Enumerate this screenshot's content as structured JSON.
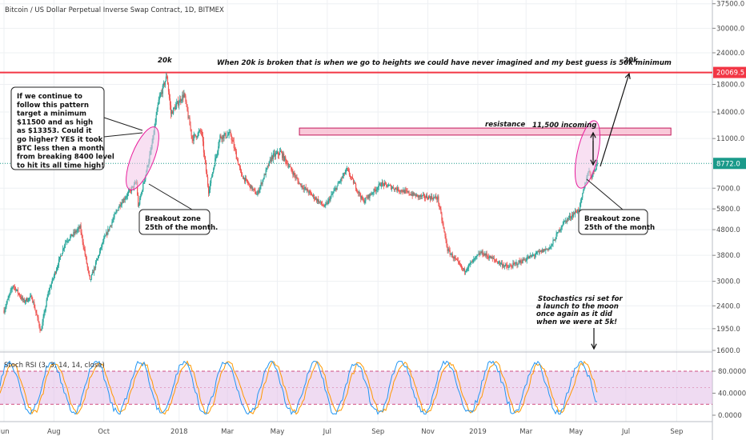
{
  "chart_data": {
    "type": "candlestick",
    "title": "Bitcoin / US Dollar Perpetual Inverse Swap Contract, 1D, BITMEX",
    "price_axis": {
      "scale": "log",
      "range": [
        1550,
        38000
      ],
      "ticks": [
        "37500.0",
        "30000.0",
        "24000.0",
        "18000.0",
        "14000.0",
        "11000.0",
        "7000.0",
        "5800.0",
        "4800.0",
        "3800.0",
        "3000.0",
        "2400.0",
        "1950.0",
        "1600.0"
      ],
      "tick_values": [
        37500,
        30000,
        24000,
        18000,
        14000,
        11000,
        7000,
        5800,
        4800,
        3800,
        3000,
        2400,
        1950,
        1600
      ]
    },
    "time_axis": {
      "range": [
        "2017-06-01",
        "2019-09-30"
      ],
      "labels": [
        "Jun",
        "Aug",
        "Oct",
        "2018",
        "Mar",
        "May",
        "Jul",
        "Sep",
        "Nov",
        "2019",
        "Mar",
        "May",
        "Jul",
        "Sep"
      ],
      "label_dates": [
        "2017-06-01",
        "2017-08-01",
        "2017-10-01",
        "2018-01-01",
        "2018-03-01",
        "2018-05-01",
        "2018-07-01",
        "2018-09-01",
        "2018-11-01",
        "2019-01-01",
        "2019-03-01",
        "2019-05-01",
        "2019-07-01",
        "2019-09-01"
      ]
    },
    "price_path": [
      [
        "2017-06-01",
        2300
      ],
      [
        "2017-06-12",
        2900
      ],
      [
        "2017-06-25",
        2500
      ],
      [
        "2017-07-05",
        2600
      ],
      [
        "2017-07-16",
        1900
      ],
      [
        "2017-07-25",
        2700
      ],
      [
        "2017-08-15",
        4300
      ],
      [
        "2017-09-02",
        4900
      ],
      [
        "2017-09-14",
        3000
      ],
      [
        "2017-09-30",
        4300
      ],
      [
        "2017-10-20",
        6000
      ],
      [
        "2017-11-10",
        7400
      ],
      [
        "2017-11-12",
        5900
      ],
      [
        "2017-11-28",
        10000
      ],
      [
        "2017-12-07",
        15500
      ],
      [
        "2017-12-17",
        19500
      ],
      [
        "2017-12-22",
        13800
      ],
      [
        "2018-01-07",
        16500
      ],
      [
        "2018-01-17",
        11000
      ],
      [
        "2018-01-28",
        11800
      ],
      [
        "2018-02-06",
        6800
      ],
      [
        "2018-02-20",
        11200
      ],
      [
        "2018-03-05",
        11400
      ],
      [
        "2018-03-18",
        7900
      ],
      [
        "2018-04-06",
        6600
      ],
      [
        "2018-04-24",
        9300
      ],
      [
        "2018-05-05",
        9700
      ],
      [
        "2018-05-28",
        7300
      ],
      [
        "2018-06-28",
        5900
      ],
      [
        "2018-07-25",
        8300
      ],
      [
        "2018-08-14",
        6200
      ],
      [
        "2018-09-05",
        7300
      ],
      [
        "2018-10-20",
        6500
      ],
      [
        "2018-11-13",
        6400
      ],
      [
        "2018-11-25",
        4000
      ],
      [
        "2018-12-15",
        3300
      ],
      [
        "2019-01-05",
        3900
      ],
      [
        "2019-02-07",
        3400
      ],
      [
        "2019-03-31",
        4100
      ],
      [
        "2019-04-15",
        5100
      ],
      [
        "2019-05-05",
        5800
      ],
      [
        "2019-05-11",
        7000
      ],
      [
        "2019-05-16",
        8200
      ],
      [
        "2019-05-20",
        7800
      ],
      [
        "2019-05-27",
        8772
      ]
    ],
    "price_labels": [
      {
        "text": "20069.5",
        "value": 20069.5,
        "color": "#f23645"
      },
      {
        "text": "8772.0",
        "value": 8772,
        "color": "#1a9a8a"
      }
    ],
    "horizontal_lines": [
      {
        "value": 20069.5,
        "color": "#f23645"
      },
      {
        "value": 8772,
        "color": "#1a9a8a",
        "style": "dotted"
      }
    ],
    "resistance_zone": {
      "from": "2018-05-28",
      "to": "2019-08-25",
      "low": 11350,
      "high": 12100
    },
    "indicator": {
      "name": "Stoch RSI (3, 3, 14, 14, close)",
      "ticks": [
        "80.0000",
        "40.0000",
        "0.0000"
      ],
      "tick_values": [
        80,
        40,
        0
      ],
      "upper_band": 80,
      "lower_band": 20
    },
    "annotations": [
      {
        "id": "top-20k",
        "text": "20k"
      },
      {
        "id": "headline",
        "text": "When 20k is broken that is when we go to heights we could have never imagined and my best guess is 50k minimum"
      },
      {
        "id": "target-20k",
        "text": "20k"
      },
      {
        "id": "resistance",
        "text": "resistance"
      },
      {
        "id": "incoming",
        "text": "11,500 incoming"
      },
      {
        "id": "left-callout",
        "lines": [
          "If we continue to",
          "follow this pattern",
          "target a minimum",
          "$11500 and as high",
          "as $13353. Could it",
          "go higher? YES it took",
          "BTC less then a month",
          "from breaking 8400 level",
          "to hit its all time high!"
        ]
      },
      {
        "id": "left-breakout",
        "lines": [
          "Breakout zone",
          "25th of the month."
        ]
      },
      {
        "id": "right-breakout",
        "lines": [
          "Breakout zone",
          "25th of the month"
        ]
      },
      {
        "id": "stoch-note",
        "lines": [
          "Stochastics rsi set for",
          "a launch to the moon",
          "once again as it did",
          "when we were at 5k!"
        ]
      }
    ],
    "colors": {
      "up": "#26a69a",
      "down": "#ef5350",
      "indicator_k": "#2196f3",
      "indicator_d": "#ff9800",
      "indicator_band": "#e1bee7",
      "zone_ellipse": "#e91e9c",
      "resistance_fill": "#f8bbd0",
      "resistance_stroke": "#c2185b"
    }
  }
}
